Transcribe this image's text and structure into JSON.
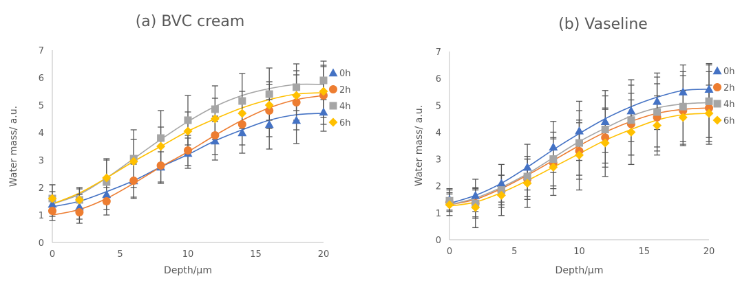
{
  "colors": {
    "0h": "#4472C4",
    "2h": "#ED7D31",
    "4h": "#A5A5A5",
    "6h": "#FFC000",
    "errorbar": "#555555",
    "axis": "#BFBFBF",
    "text": "#595959"
  },
  "chart_data": [
    {
      "type": "scatter",
      "title": "(a) BVC cream",
      "xlabel": "Depth/μm",
      "ylabel": "Water mass/ a.u.",
      "xlim": [
        0,
        20
      ],
      "ylim": [
        0,
        7
      ],
      "x_ticks": [
        0,
        5,
        10,
        15,
        20
      ],
      "y_ticks": [
        0,
        1,
        2,
        3,
        4,
        5,
        6,
        7
      ],
      "grid": false,
      "legend_position": "right",
      "x": [
        0,
        2,
        4,
        6,
        8,
        10,
        12,
        14,
        16,
        18,
        20
      ],
      "series": [
        {
          "name": "0h",
          "marker": "triangle",
          "values": [
            1.4,
            1.3,
            1.75,
            2.25,
            2.75,
            3.25,
            3.7,
            4.0,
            4.3,
            4.45,
            4.75
          ],
          "error": [
            0.45,
            0.45,
            0.55,
            0.65,
            0.55,
            0.55,
            0.7,
            0.75,
            0.9,
            0.85,
            0.7
          ],
          "fit": [
            1.3,
            1.5,
            1.85,
            2.25,
            2.75,
            3.2,
            3.7,
            4.1,
            4.45,
            4.65,
            4.7
          ]
        },
        {
          "name": "2h",
          "marker": "circle",
          "values": [
            1.15,
            1.1,
            1.5,
            2.25,
            2.8,
            3.35,
            3.9,
            4.3,
            4.8,
            5.1,
            5.35
          ],
          "error": [
            0.35,
            0.4,
            0.5,
            0.6,
            0.65,
            0.55,
            0.7,
            0.75,
            0.95,
            1.0,
            1.05
          ],
          "fit": [
            1.0,
            1.2,
            1.6,
            2.15,
            2.75,
            3.3,
            3.9,
            4.45,
            4.9,
            5.2,
            5.35
          ]
        },
        {
          "name": "4h",
          "marker": "square",
          "values": [
            1.6,
            1.55,
            2.2,
            3.05,
            3.8,
            4.45,
            4.85,
            5.15,
            5.4,
            5.65,
            5.9
          ],
          "error": [
            0.5,
            0.45,
            0.8,
            1.05,
            1.0,
            0.9,
            0.85,
            1.0,
            0.95,
            0.85,
            0.7
          ],
          "fit": [
            1.4,
            1.75,
            2.35,
            3.05,
            3.75,
            4.4,
            4.95,
            5.35,
            5.6,
            5.75,
            5.75
          ]
        },
        {
          "name": "6h",
          "marker": "diamond",
          "values": [
            1.6,
            1.55,
            2.35,
            2.95,
            3.5,
            4.05,
            4.5,
            4.7,
            5.0,
            5.35,
            5.5
          ],
          "error": [
            0.5,
            0.4,
            0.7,
            0.8,
            0.7,
            0.7,
            0.75,
            0.8,
            0.85,
            0.9,
            0.95
          ],
          "fit": [
            1.4,
            1.8,
            2.35,
            2.95,
            3.5,
            4.05,
            4.5,
            4.9,
            5.2,
            5.4,
            5.45
          ]
        }
      ]
    },
    {
      "type": "scatter",
      "title": "(b) Vaseline",
      "xlabel": "Depth/μm",
      "ylabel": "Water mass/ a.u.",
      "xlim": [
        0,
        20
      ],
      "ylim": [
        0,
        7
      ],
      "x_ticks": [
        0,
        5,
        10,
        15,
        20
      ],
      "y_ticks": [
        0,
        1,
        2,
        3,
        4,
        5,
        6,
        7
      ],
      "grid": false,
      "legend_position": "right",
      "x": [
        0,
        2,
        4,
        6,
        8,
        10,
        12,
        14,
        16,
        18,
        20
      ],
      "series": [
        {
          "name": "0h",
          "marker": "triangle",
          "values": [
            1.5,
            1.65,
            2.1,
            2.7,
            3.45,
            4.05,
            4.4,
            4.8,
            5.15,
            5.5,
            5.6
          ],
          "error": [
            0.4,
            0.6,
            0.7,
            0.85,
            0.95,
            1.1,
            1.15,
            1.15,
            1.05,
            1.0,
            0.95
          ],
          "fit": [
            1.35,
            1.65,
            2.1,
            2.7,
            3.35,
            3.95,
            4.5,
            4.95,
            5.3,
            5.55,
            5.6
          ]
        },
        {
          "name": "2h",
          "marker": "circle",
          "values": [
            1.4,
            1.35,
            1.8,
            2.25,
            2.85,
            3.3,
            3.8,
            4.3,
            4.55,
            4.8,
            4.9
          ],
          "error": [
            0.35,
            0.55,
            0.6,
            0.75,
            0.95,
            1.05,
            1.1,
            1.15,
            1.25,
            1.3,
            1.35
          ],
          "fit": [
            1.3,
            1.5,
            1.9,
            2.4,
            2.95,
            3.5,
            4.0,
            4.4,
            4.7,
            4.85,
            4.9
          ]
        },
        {
          "name": "4h",
          "marker": "square",
          "values": [
            1.45,
            1.35,
            1.85,
            2.35,
            3.0,
            3.6,
            4.1,
            4.45,
            4.75,
            4.95,
            5.15
          ],
          "error": [
            0.4,
            0.5,
            0.55,
            0.75,
            1.0,
            1.2,
            1.25,
            1.3,
            1.3,
            1.3,
            1.35
          ],
          "fit": [
            1.3,
            1.55,
            1.95,
            2.45,
            3.05,
            3.65,
            4.15,
            4.6,
            4.9,
            5.05,
            5.1
          ]
        },
        {
          "name": "6h",
          "marker": "diamond",
          "values": [
            1.3,
            1.2,
            1.65,
            2.1,
            2.7,
            3.15,
            3.6,
            4.0,
            4.25,
            4.55,
            4.7
          ],
          "error": [
            0.4,
            0.75,
            0.75,
            0.9,
            1.05,
            1.3,
            1.25,
            1.2,
            1.1,
            1.0,
            1.05
          ],
          "fit": [
            1.25,
            1.4,
            1.75,
            2.2,
            2.7,
            3.2,
            3.7,
            4.1,
            4.45,
            4.65,
            4.7
          ]
        }
      ]
    }
  ]
}
